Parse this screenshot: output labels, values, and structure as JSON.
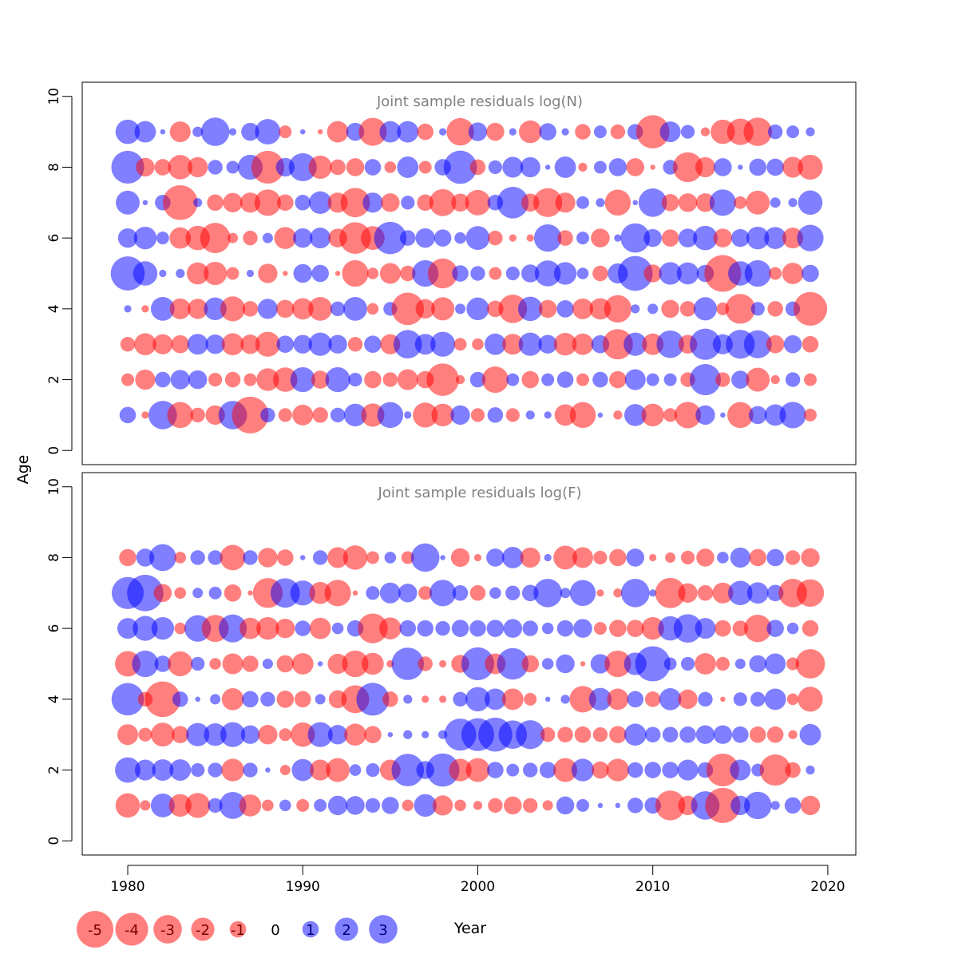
{
  "colors": {
    "negative": "#ff0000",
    "positive": "#0000ff",
    "title": "#808080",
    "axis": "#000000"
  },
  "axes": {
    "xlabel": "Year",
    "ylabel": "Age",
    "xlim": [
      1977.4,
      2021.6
    ],
    "xticks": [
      1980,
      1990,
      2000,
      2010,
      2020
    ],
    "ylim": [
      -0.4,
      10.4
    ],
    "yticks": [
      0,
      2,
      4,
      6,
      8,
      10
    ]
  },
  "legend": {
    "entries": [
      "-5",
      "-4",
      "-3",
      "-2",
      "-1",
      "0",
      "1",
      "2",
      "3"
    ],
    "values": [
      -5,
      -4,
      -3,
      -2,
      -1,
      0,
      1,
      2,
      3
    ]
  },
  "chart_data": [
    {
      "type": "scatter",
      "title": "Joint sample residuals log(N)",
      "xlabel": "Year",
      "ylabel": "Age",
      "years": [
        1980,
        1981,
        1982,
        1983,
        1984,
        1985,
        1986,
        1987,
        1988,
        1989,
        1990,
        1991,
        1992,
        1993,
        1994,
        1995,
        1996,
        1997,
        1998,
        1999,
        2000,
        2001,
        2002,
        2003,
        2004,
        2005,
        2006,
        2007,
        2008,
        2009,
        2010,
        2011,
        2012,
        2013,
        2014,
        2015,
        2016,
        2017,
        2018,
        2019
      ],
      "ages": [
        1,
        2,
        3,
        4,
        5,
        6,
        7,
        8,
        9
      ],
      "residuals": [
        [
          1.0,
          -0.2,
          3.0,
          -2.5,
          -0.8,
          -1.4,
          3.0,
          -5.0,
          0.8,
          -0.7,
          -1.6,
          -0.9,
          0.8,
          1.9,
          -2.0,
          2.5,
          0.2,
          -2.3,
          -1.9,
          1.4,
          -0.7,
          0.9,
          -0.7,
          0.3,
          0.2,
          -1.7,
          -2.5,
          0.1,
          -0.3,
          1.8,
          -1.9,
          -0.7,
          -2.6,
          1.4,
          0.1,
          -2.5,
          1.2,
          1.7,
          2.6,
          -0.6
        ],
        [
          -0.6,
          -1.5,
          0.9,
          1.4,
          1.3,
          -0.7,
          -0.9,
          -0.6,
          -1.9,
          -2.2,
          2.3,
          -1.2,
          2.3,
          0.7,
          -1.1,
          -0.8,
          -1.6,
          -1.1,
          -3.9,
          -0.3,
          0.9,
          -2.6,
          0.6,
          -1.1,
          0.6,
          1.0,
          -0.6,
          0.9,
          -1.1,
          1.6,
          0.6,
          0.6,
          -0.8,
          3.6,
          -0.8,
          1.2,
          -2.1,
          -0.3,
          0.8,
          -0.6
        ],
        [
          -0.8,
          -1.8,
          -1.5,
          -1.2,
          1.6,
          1.4,
          -1.8,
          -1.4,
          -2.3,
          1.1,
          1.3,
          2.0,
          1.3,
          -0.8,
          1.1,
          -1.5,
          3.0,
          1.6,
          2.3,
          -0.6,
          -0.5,
          1.7,
          -1.6,
          2.0,
          1.3,
          -1.9,
          -1.7,
          1.2,
          -3.4,
          2.0,
          -1.7,
          2.8,
          -1.3,
          3.6,
          1.5,
          3.1,
          2.9,
          -1.2,
          1.2,
          -1.0
        ],
        [
          0.2,
          -0.2,
          2.1,
          -1.6,
          -1.5,
          1.9,
          -2.3,
          -0.9,
          1.5,
          -1.2,
          -1.7,
          -2.1,
          0.8,
          2.1,
          -0.5,
          0.7,
          -3.9,
          -1.4,
          -2.0,
          0.4,
          1.9,
          -1.0,
          -3.0,
          2.2,
          -1.2,
          1.1,
          -1.6,
          -1.7,
          -2.8,
          0.3,
          0.4,
          -1.2,
          -0.9,
          2.0,
          -0.6,
          -3.3,
          0.7,
          -0.9,
          0.8,
          -4.2
        ],
        [
          4.3,
          2.2,
          0.2,
          0.3,
          -1.8,
          -2.0,
          -0.6,
          0.2,
          -1.4,
          -0.1,
          1.3,
          1.1,
          -0.1,
          -2.6,
          -0.5,
          -1.6,
          -0.9,
          2.6,
          -3.3,
          1.0,
          0.8,
          -0.6,
          0.7,
          1.2,
          2.5,
          1.9,
          0.5,
          -0.9,
          1.5,
          4.5,
          -1.2,
          1.9,
          1.8,
          1.1,
          -5.0,
          2.2,
          2.6,
          -0.6,
          -1.7,
          1.1
        ],
        [
          1.4,
          1.9,
          0.6,
          -1.7,
          -2.2,
          -3.4,
          -0.4,
          -0.8,
          0.4,
          -1.8,
          1.4,
          1.6,
          -1.3,
          -3.7,
          -2.1,
          3.9,
          0.9,
          1.4,
          1.1,
          0.5,
          2.1,
          -0.8,
          -0.2,
          -0.2,
          2.8,
          -0.9,
          0.6,
          -1.3,
          0.2,
          3.2,
          1.2,
          -1.1,
          1.3,
          2.2,
          -1.3,
          1.2,
          1.9,
          1.8,
          -1.6,
          2.6
        ],
        [
          2.1,
          0.1,
          0.9,
          -4.5,
          0.3,
          -1.0,
          -1.4,
          -1.5,
          -2.6,
          -1.0,
          0.9,
          1.9,
          -1.5,
          -3.2,
          1.5,
          -1.3,
          0.7,
          -1.0,
          -2.7,
          -1.2,
          -2.4,
          0.9,
          3.7,
          -1.2,
          -3.1,
          -1.5,
          0.6,
          0.3,
          -2.5,
          0.1,
          3.0,
          -1.1,
          -1.3,
          -1.3,
          2.6,
          -0.6,
          -2.1,
          0.4,
          0.3,
          2.2
        ],
        [
          4.0,
          -1.3,
          -1.0,
          -2.2,
          -1.5,
          0.8,
          0.6,
          2.3,
          -4.0,
          1.3,
          2.9,
          -2.0,
          -0.9,
          -1.2,
          1.0,
          -0.5,
          1.7,
          -0.6,
          1.0,
          4.1,
          -0.9,
          0.7,
          1.6,
          1.5,
          0.1,
          1.7,
          -0.3,
          0.6,
          1.2,
          -1.2,
          -0.1,
          0.8,
          -3.3,
          -1.5,
          1.2,
          0.1,
          1.1,
          1.1,
          -1.6,
          -2.3
        ],
        [
          2.2,
          1.7,
          0.1,
          -1.6,
          0.4,
          3.0,
          0.2,
          1.2,
          2.4,
          -0.6,
          0.1,
          -0.1,
          -1.7,
          1.2,
          -2.9,
          1.7,
          1.7,
          -1.0,
          0.2,
          -2.8,
          1.3,
          -1.2,
          0.2,
          -1.9,
          1.1,
          0.2,
          -0.9,
          0.6,
          -0.8,
          0.9,
          -4.1,
          1.6,
          0.7,
          -0.3,
          -2.2,
          -2.6,
          -3.0,
          0.8,
          0.6,
          0.3
        ]
      ]
    },
    {
      "type": "scatter",
      "title": "Joint sample residuals log(F)",
      "xlabel": "Year",
      "ylabel": "Age",
      "years": [
        1980,
        1981,
        1982,
        1983,
        1984,
        1985,
        1986,
        1987,
        1988,
        1989,
        1990,
        1991,
        1992,
        1993,
        1994,
        1995,
        1996,
        1997,
        1998,
        1999,
        2000,
        2001,
        2002,
        2003,
        2004,
        2005,
        2006,
        2007,
        2008,
        2009,
        2010,
        2011,
        2012,
        2013,
        2014,
        2015,
        2016,
        2017,
        2018,
        2019
      ],
      "ages": [
        1,
        2,
        3,
        4,
        5,
        6,
        7,
        8
      ],
      "residuals": [
        [
          -2.2,
          -0.4,
          2.1,
          -1.9,
          -2.3,
          0.8,
          2.7,
          -1.8,
          -0.5,
          0.5,
          -0.6,
          0.6,
          1.4,
          1.3,
          0.8,
          1.1,
          -0.5,
          1.9,
          -1.5,
          -0.5,
          -0.3,
          -0.8,
          -1.2,
          -0.8,
          -0.4,
          1.2,
          0.6,
          0.1,
          0.1,
          0.9,
          1.0,
          -3.3,
          -1.4,
          3.0,
          -4.6,
          1.4,
          2.8,
          0.3,
          1.0,
          -1.4
        ],
        [
          2.4,
          1.6,
          1.7,
          1.7,
          0.7,
          0.8,
          -1.9,
          0.8,
          0.1,
          -0.4,
          1.8,
          -1.6,
          -2.1,
          0.5,
          0.7,
          -1.6,
          3.9,
          1.2,
          4.1,
          -1.9,
          -2.1,
          1.0,
          0.6,
          0.8,
          1.0,
          -2.1,
          1.9,
          -1.1,
          -1.9,
          0.9,
          1.0,
          1.0,
          1.6,
          0.9,
          -4.0,
          1.6,
          0.6,
          -3.6,
          -0.9,
          0.3
        ],
        [
          -1.6,
          -0.7,
          -2.1,
          -1.1,
          2.0,
          1.9,
          2.3,
          1.3,
          -1.4,
          -0.6,
          -2.2,
          2.3,
          1.4,
          -1.8,
          -1.1,
          0.1,
          0.3,
          0.2,
          0.3,
          3.8,
          4.0,
          4.3,
          3.0,
          3.1,
          -0.8,
          -0.9,
          -1.0,
          -0.8,
          -1.1,
          1.8,
          0.9,
          0.9,
          1.0,
          1.3,
          1.3,
          1.0,
          -1.0,
          -1.0,
          -0.3,
          1.7
        ],
        [
          3.9,
          -0.8,
          -4.7,
          0.9,
          0.1,
          0.4,
          -1.8,
          1.0,
          0.8,
          -1.1,
          -1.0,
          0.4,
          -1.2,
          -2.9,
          4.0,
          -0.9,
          0.3,
          -0.2,
          -0.2,
          0.8,
          2.2,
          1.7,
          -1.7,
          -0.6,
          0.1,
          0.3,
          -2.6,
          1.9,
          -1.7,
          1.0,
          -0.9,
          1.8,
          -1.4,
          0.8,
          -0.1,
          0.7,
          0.8,
          1.7,
          -0.5,
          -2.3
        ],
        [
          -2.4,
          2.6,
          1.0,
          -2.3,
          0.7,
          -0.5,
          -1.6,
          -1.0,
          0.4,
          -1.1,
          -1.7,
          0.1,
          -1.5,
          -2.6,
          -1.8,
          -0.2,
          3.9,
          -0.8,
          -0.2,
          -1.2,
          4.0,
          -1.6,
          3.7,
          -1.1,
          0.5,
          1.3,
          -0.1,
          1.4,
          -2.6,
          1.9,
          4.6,
          0.6,
          0.7,
          -1.7,
          -0.7,
          0.4,
          1.1,
          1.6,
          -0.6,
          -3.2
        ],
        [
          1.6,
          2.3,
          1.9,
          -0.5,
          2.6,
          -2.7,
          2.9,
          -1.7,
          -1.9,
          -1.4,
          0.9,
          -1.7,
          0.5,
          1.0,
          -3.3,
          -1.8,
          1.0,
          1.0,
          0.8,
          1.1,
          1.0,
          1.1,
          1.3,
          0.9,
          0.5,
          1.0,
          1.3,
          -0.6,
          -1.1,
          -1.1,
          -1.9,
          2.2,
          3.0,
          1.6,
          -1.0,
          -0.9,
          -2.8,
          1.1,
          0.5,
          -1.0
        ],
        [
          3.8,
          4.9,
          -1.2,
          -0.5,
          0.4,
          0.6,
          -1.1,
          -0.1,
          -3.3,
          3.2,
          2.3,
          -1.8,
          -2.6,
          -0.1,
          0.7,
          1.6,
          1.3,
          -0.7,
          2.6,
          0.9,
          -0.9,
          0.5,
          0.8,
          1.0,
          3.0,
          0.4,
          2.5,
          -0.2,
          -0.3,
          3.0,
          0.2,
          -3.4,
          -1.4,
          -0.9,
          -1.6,
          2.2,
          1.7,
          1.0,
          -3.0,
          -2.8
        ],
        [
          -1.1,
          1.2,
          2.7,
          -0.5,
          0.8,
          0.8,
          -2.4,
          0.8,
          -1.4,
          -1.0,
          0.1,
          0.8,
          -1.6,
          -2.2,
          -0.6,
          0.5,
          -0.6,
          3.0,
          0.1,
          -1.3,
          -0.2,
          1.2,
          1.7,
          -1.5,
          0.2,
          -2.1,
          -1.6,
          -0.7,
          -1.1,
          1.2,
          -0.2,
          -0.4,
          -0.7,
          -1.2,
          0.5,
          1.5,
          -1.1,
          1.1,
          -0.8,
          -1.3
        ]
      ]
    }
  ]
}
